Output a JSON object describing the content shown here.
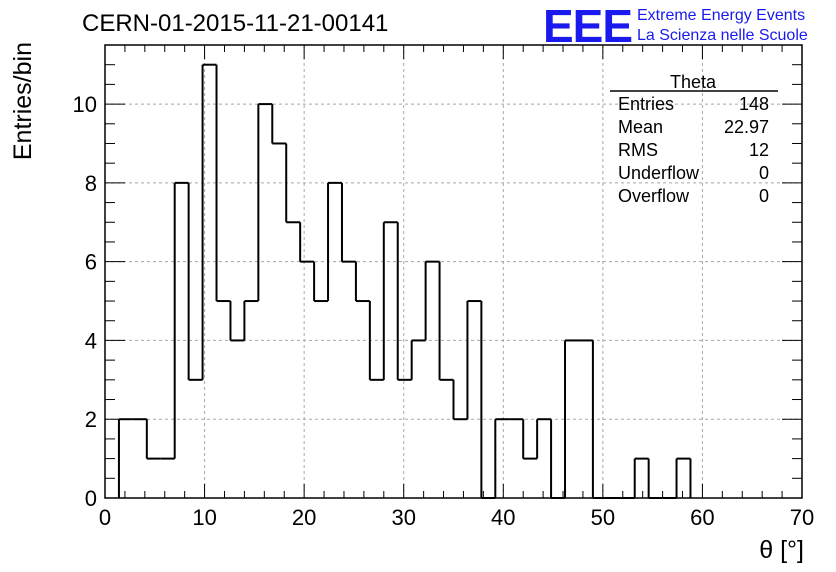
{
  "chart_data": {
    "type": "histogram",
    "title": "CERN-01-2015-11-21-00141",
    "xlabel": "θ [°]",
    "ylabel": "Entries/bin",
    "xlim": [
      0,
      70
    ],
    "ylim": [
      0,
      11.5
    ],
    "x_ticks": [
      0,
      10,
      20,
      30,
      40,
      50,
      60,
      70
    ],
    "y_ticks": [
      0,
      2,
      4,
      6,
      8,
      10
    ],
    "grid": true,
    "bin_edges": [
      1.4,
      2.8,
      4.2,
      5.6,
      7.0,
      8.4,
      9.8,
      11.2,
      12.6,
      14.0,
      15.4,
      16.8,
      18.2,
      19.6,
      21.0,
      22.4,
      23.8,
      25.2,
      26.6,
      28.0,
      29.4,
      30.8,
      32.2,
      33.6,
      35.0,
      36.4,
      37.8,
      39.2,
      40.6,
      42.0,
      43.4,
      44.8,
      46.2,
      47.6,
      49.0,
      50.4,
      51.8,
      53.2,
      54.6,
      56.0,
      57.4,
      58.8
    ],
    "counts": [
      2,
      2,
      1,
      1,
      8,
      3,
      11,
      5,
      4,
      5,
      10,
      9,
      7,
      6,
      5,
      8,
      6,
      5,
      3,
      7,
      3,
      4,
      6,
      3,
      2,
      5,
      0,
      2,
      2,
      1,
      2,
      0,
      4,
      4,
      0,
      0,
      0,
      1,
      0,
      0,
      1
    ],
    "stats_box": {
      "name": "Theta",
      "rows": [
        {
          "label": "Entries",
          "value": "148"
        },
        {
          "label": "Mean",
          "value": "22.97"
        },
        {
          "label": "RMS",
          "value": "12"
        },
        {
          "label": "Underflow",
          "value": "0"
        },
        {
          "label": "Overflow",
          "value": "0"
        }
      ],
      "placement": "top-right"
    }
  },
  "logo": {
    "mark": "EEE",
    "line1": "Extreme Energy Events",
    "line2": "La Scienza nelle Scuole",
    "color": "#1a1aee"
  }
}
